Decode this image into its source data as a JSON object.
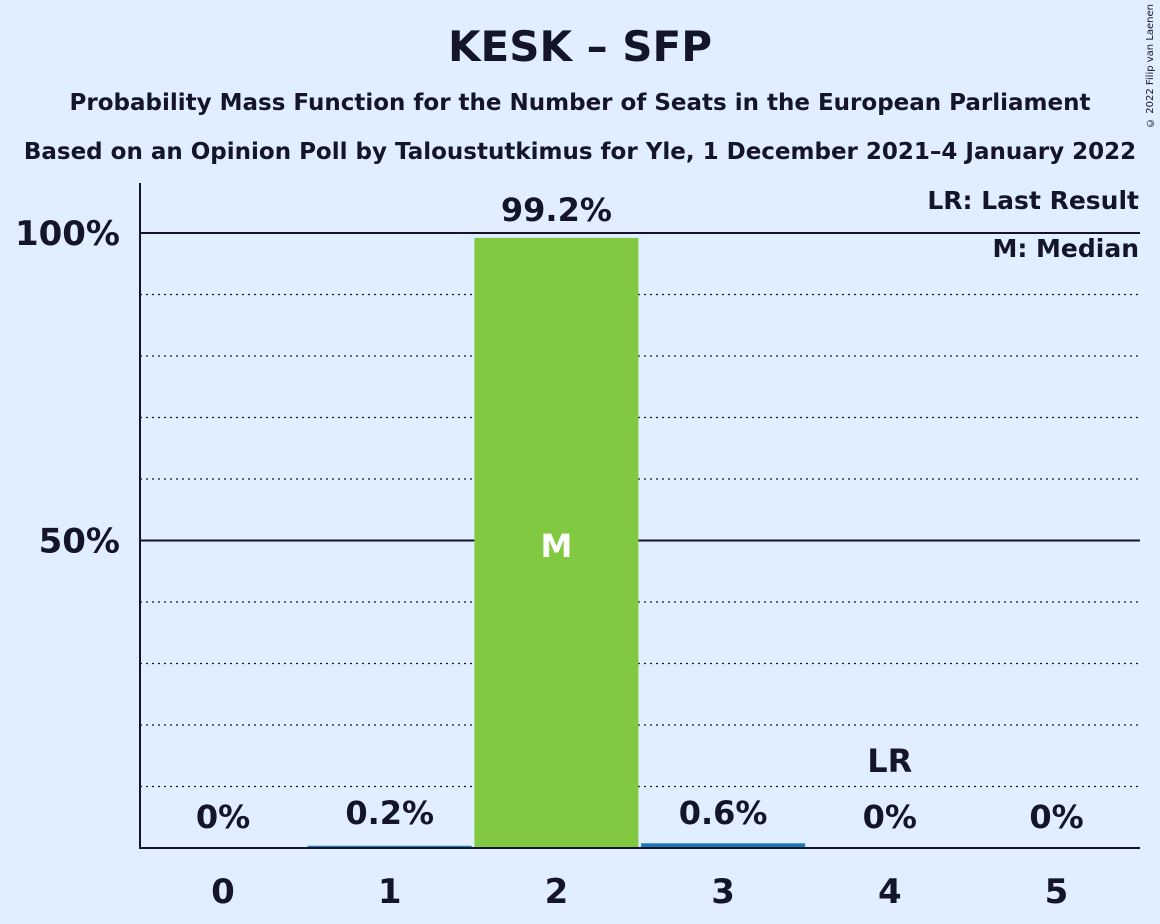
{
  "header": {
    "title": "KESK – SFP",
    "subtitle": "Probability Mass Function for the Number of Seats in the European Parliament",
    "subtitle2": "Based on an Opinion Poll by Taloustutkimus for Yle, 1 December 2021–4 January 2022",
    "copyright": "© 2022 Filip van Laenen"
  },
  "colors": {
    "background": "#e0eeff",
    "median_bar": "#80c940",
    "other_bar": "#1f77b4",
    "text": "#14142b"
  },
  "chart_data": {
    "type": "bar",
    "title": "KESK – SFP",
    "categories": [
      "0",
      "1",
      "2",
      "3",
      "4",
      "5"
    ],
    "values": [
      0,
      0.2,
      99.2,
      0.6,
      0,
      0
    ],
    "value_labels": [
      "0%",
      "0.2%",
      "99.2%",
      "0.6%",
      "0%",
      "0%"
    ],
    "ylim": [
      0,
      100
    ],
    "yticks": [
      {
        "value": 50,
        "label": "50%"
      },
      {
        "value": 100,
        "label": "100%"
      }
    ],
    "minor_grid_step": 10,
    "median_index": 2,
    "median_marker": "M",
    "last_result_index": 4,
    "last_result_marker": "LR",
    "legend": {
      "placement": "top-right",
      "items": [
        "LR: Last Result",
        "M: Median"
      ]
    }
  }
}
